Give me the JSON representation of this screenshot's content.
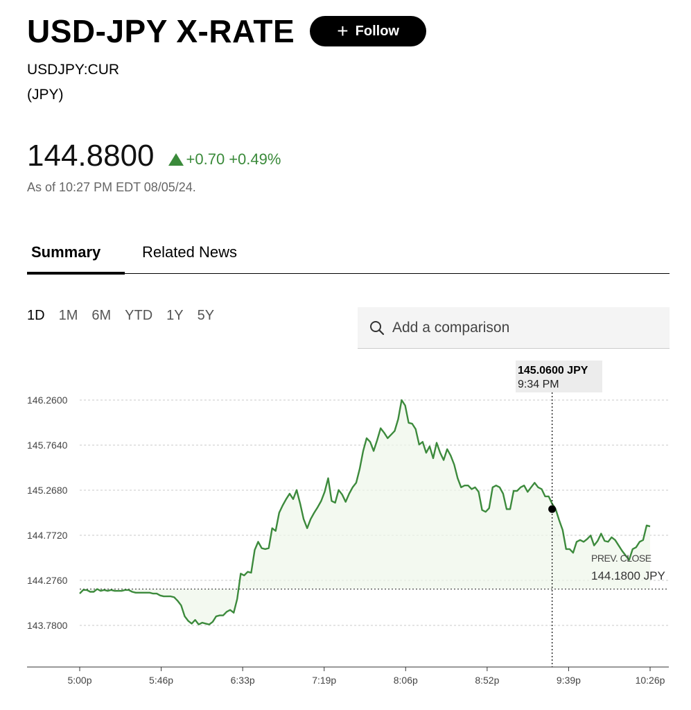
{
  "header": {
    "title": "USD-JPY X-RATE",
    "follow_label": "Follow"
  },
  "ticker": "USDJPY:CUR",
  "currency": "(JPY)",
  "quote": {
    "price": "144.8800",
    "change": "+0.70",
    "change_pct": "+0.49%",
    "as_of": "As of 10:27 PM EDT 08/05/24."
  },
  "tabs": [
    {
      "label": "Summary",
      "active": true
    },
    {
      "label": "Related News",
      "active": false
    }
  ],
  "ranges": [
    {
      "label": "1D",
      "active": true
    },
    {
      "label": "1M"
    },
    {
      "label": "6M"
    },
    {
      "label": "YTD"
    },
    {
      "label": "1Y"
    },
    {
      "label": "5Y"
    }
  ],
  "compare": {
    "placeholder": "Add a comparison"
  },
  "colors": {
    "up": "#3a8a3a",
    "line": "#3c8a3c"
  },
  "chart_data": {
    "type": "line",
    "ylim": [
      143.7,
      146.35
    ],
    "y_ticks": [
      "146.2600",
      "145.7640",
      "145.2680",
      "144.7720",
      "144.2760",
      "143.7800"
    ],
    "y_tick_values": [
      146.26,
      145.764,
      145.268,
      144.772,
      144.276,
      143.78
    ],
    "x_ticks": [
      "5:00p",
      "5:46p",
      "6:33p",
      "7:19p",
      "8:06p",
      "8:52p",
      "9:39p",
      "10:26p"
    ],
    "grid": true,
    "prev_close": {
      "label": "PREV. CLOSE",
      "value": 144.18,
      "text": "144.1800 JPY"
    },
    "tooltip": {
      "value": "145.0600 JPY",
      "time": "9:34 PM",
      "point_value": 145.06
    },
    "series": [
      {
        "values": [
          144.13,
          144.17,
          144.17,
          144.15,
          144.15,
          144.18,
          144.16,
          144.17,
          144.16,
          144.17,
          144.16,
          144.16,
          144.16,
          144.17,
          144.17,
          144.15,
          144.14,
          144.14,
          144.14,
          144.14,
          144.14,
          144.13,
          144.13,
          144.11,
          144.1,
          144.1,
          144.1,
          144.09,
          144.05,
          144.0,
          143.88,
          143.83,
          143.8,
          143.84,
          143.79,
          143.81,
          143.8,
          143.79,
          143.82,
          143.88,
          143.89,
          143.89,
          143.93,
          143.95,
          143.92,
          144.07,
          144.35,
          144.33,
          144.37,
          144.36,
          144.61,
          144.7,
          144.63,
          144.62,
          144.63,
          144.85,
          144.82,
          145.02,
          145.1,
          145.17,
          145.23,
          145.17,
          145.27,
          145.12,
          144.95,
          144.85,
          144.95,
          145.02,
          145.08,
          145.15,
          145.25,
          145.4,
          145.15,
          145.13,
          145.27,
          145.22,
          145.14,
          145.23,
          145.3,
          145.35,
          145.5,
          145.7,
          145.84,
          145.8,
          145.7,
          145.82,
          145.95,
          145.9,
          145.84,
          145.88,
          145.92,
          146.05,
          146.26,
          146.2,
          146.01,
          146.0,
          145.94,
          145.77,
          145.8,
          145.68,
          145.75,
          145.62,
          145.79,
          145.68,
          145.6,
          145.72,
          145.65,
          145.55,
          145.4,
          145.3,
          145.32,
          145.32,
          145.28,
          145.3,
          145.25,
          145.05,
          145.03,
          145.07,
          145.3,
          145.32,
          145.3,
          145.23,
          145.06,
          145.06,
          145.26,
          145.26,
          145.3,
          145.32,
          145.25,
          145.3,
          145.35,
          145.3,
          145.28,
          145.2,
          145.2,
          145.12,
          145.06,
          144.94,
          144.83,
          144.62,
          144.62,
          144.58,
          144.7,
          144.72,
          144.7,
          144.73,
          144.77,
          144.66,
          144.71,
          144.79,
          144.71,
          144.7,
          144.75,
          144.72,
          144.66,
          144.6,
          144.55,
          144.5,
          144.62,
          144.64,
          144.7,
          144.72,
          144.88,
          144.87
        ]
      }
    ]
  }
}
